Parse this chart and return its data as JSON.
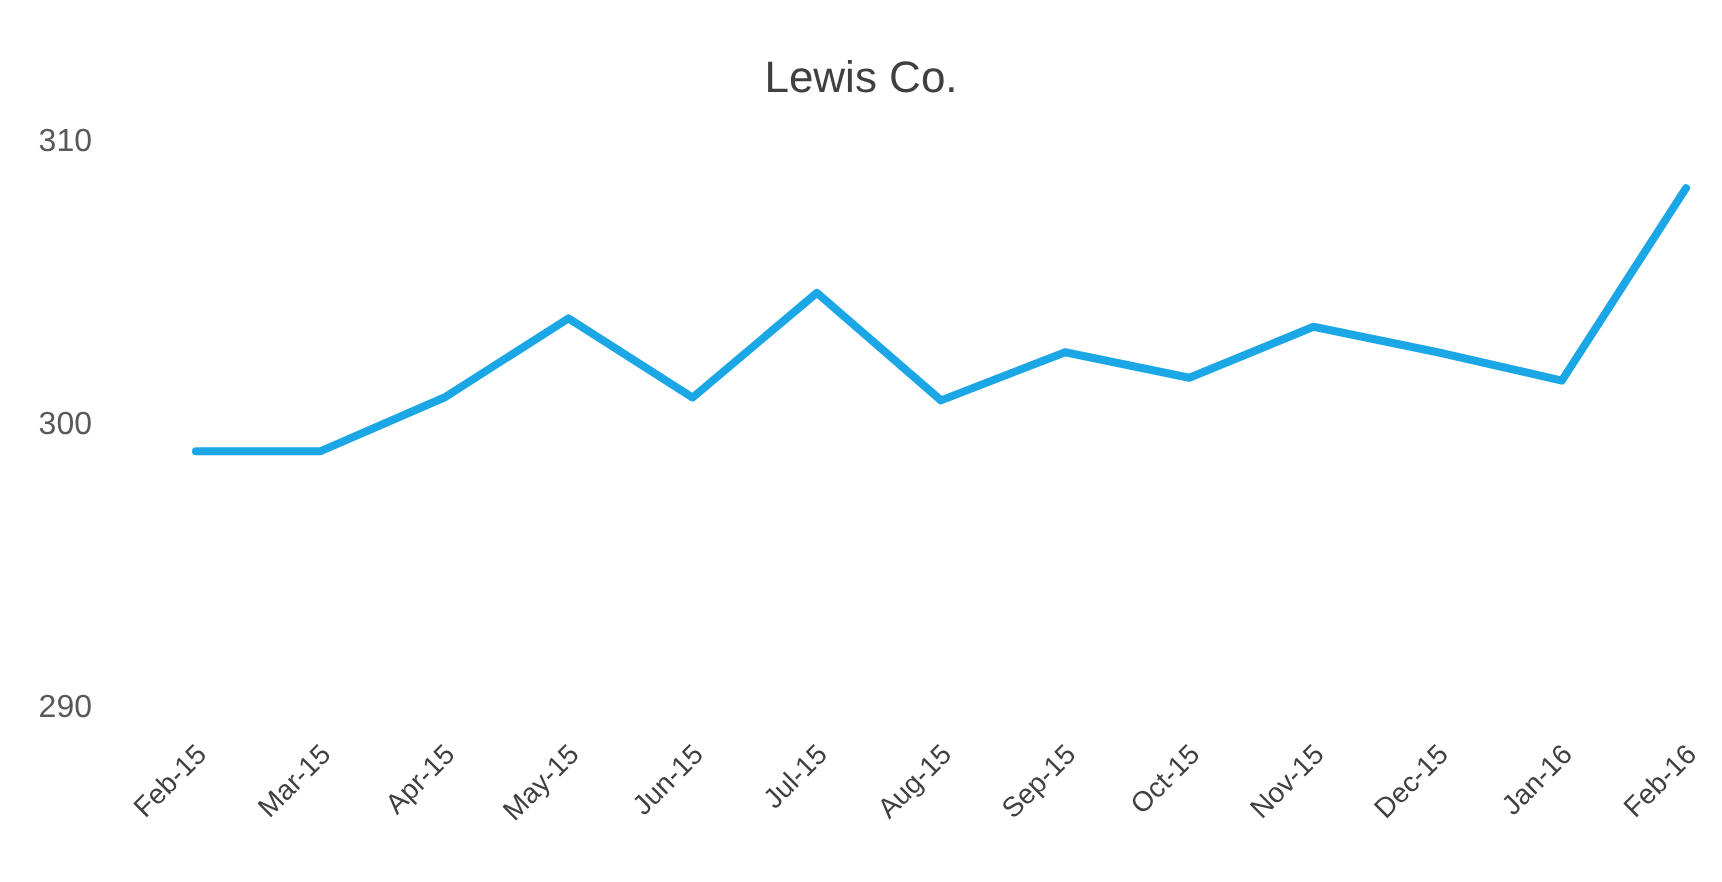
{
  "chart_data": {
    "type": "line",
    "title": "Lewis Co.",
    "categories": [
      "Feb-15",
      "Mar-15",
      "Apr-15",
      "May-15",
      "Jun-15",
      "Jul-15",
      "Aug-15",
      "Sep-15",
      "Oct-15",
      "Nov-15",
      "Dec-15",
      "Jan-16",
      "Feb-16"
    ],
    "series": [
      {
        "color": "#1ba7e6",
        "values": [
          299.0,
          299.0,
          300.9,
          303.7,
          300.9,
          304.6,
          300.8,
          302.5,
          301.6,
          303.4,
          302.5,
          301.5,
          308.3
        ]
      }
    ],
    "ylim": [
      290,
      310
    ],
    "yticks": [
      290,
      300,
      310
    ],
    "marker": "none",
    "line_style": "solid"
  }
}
